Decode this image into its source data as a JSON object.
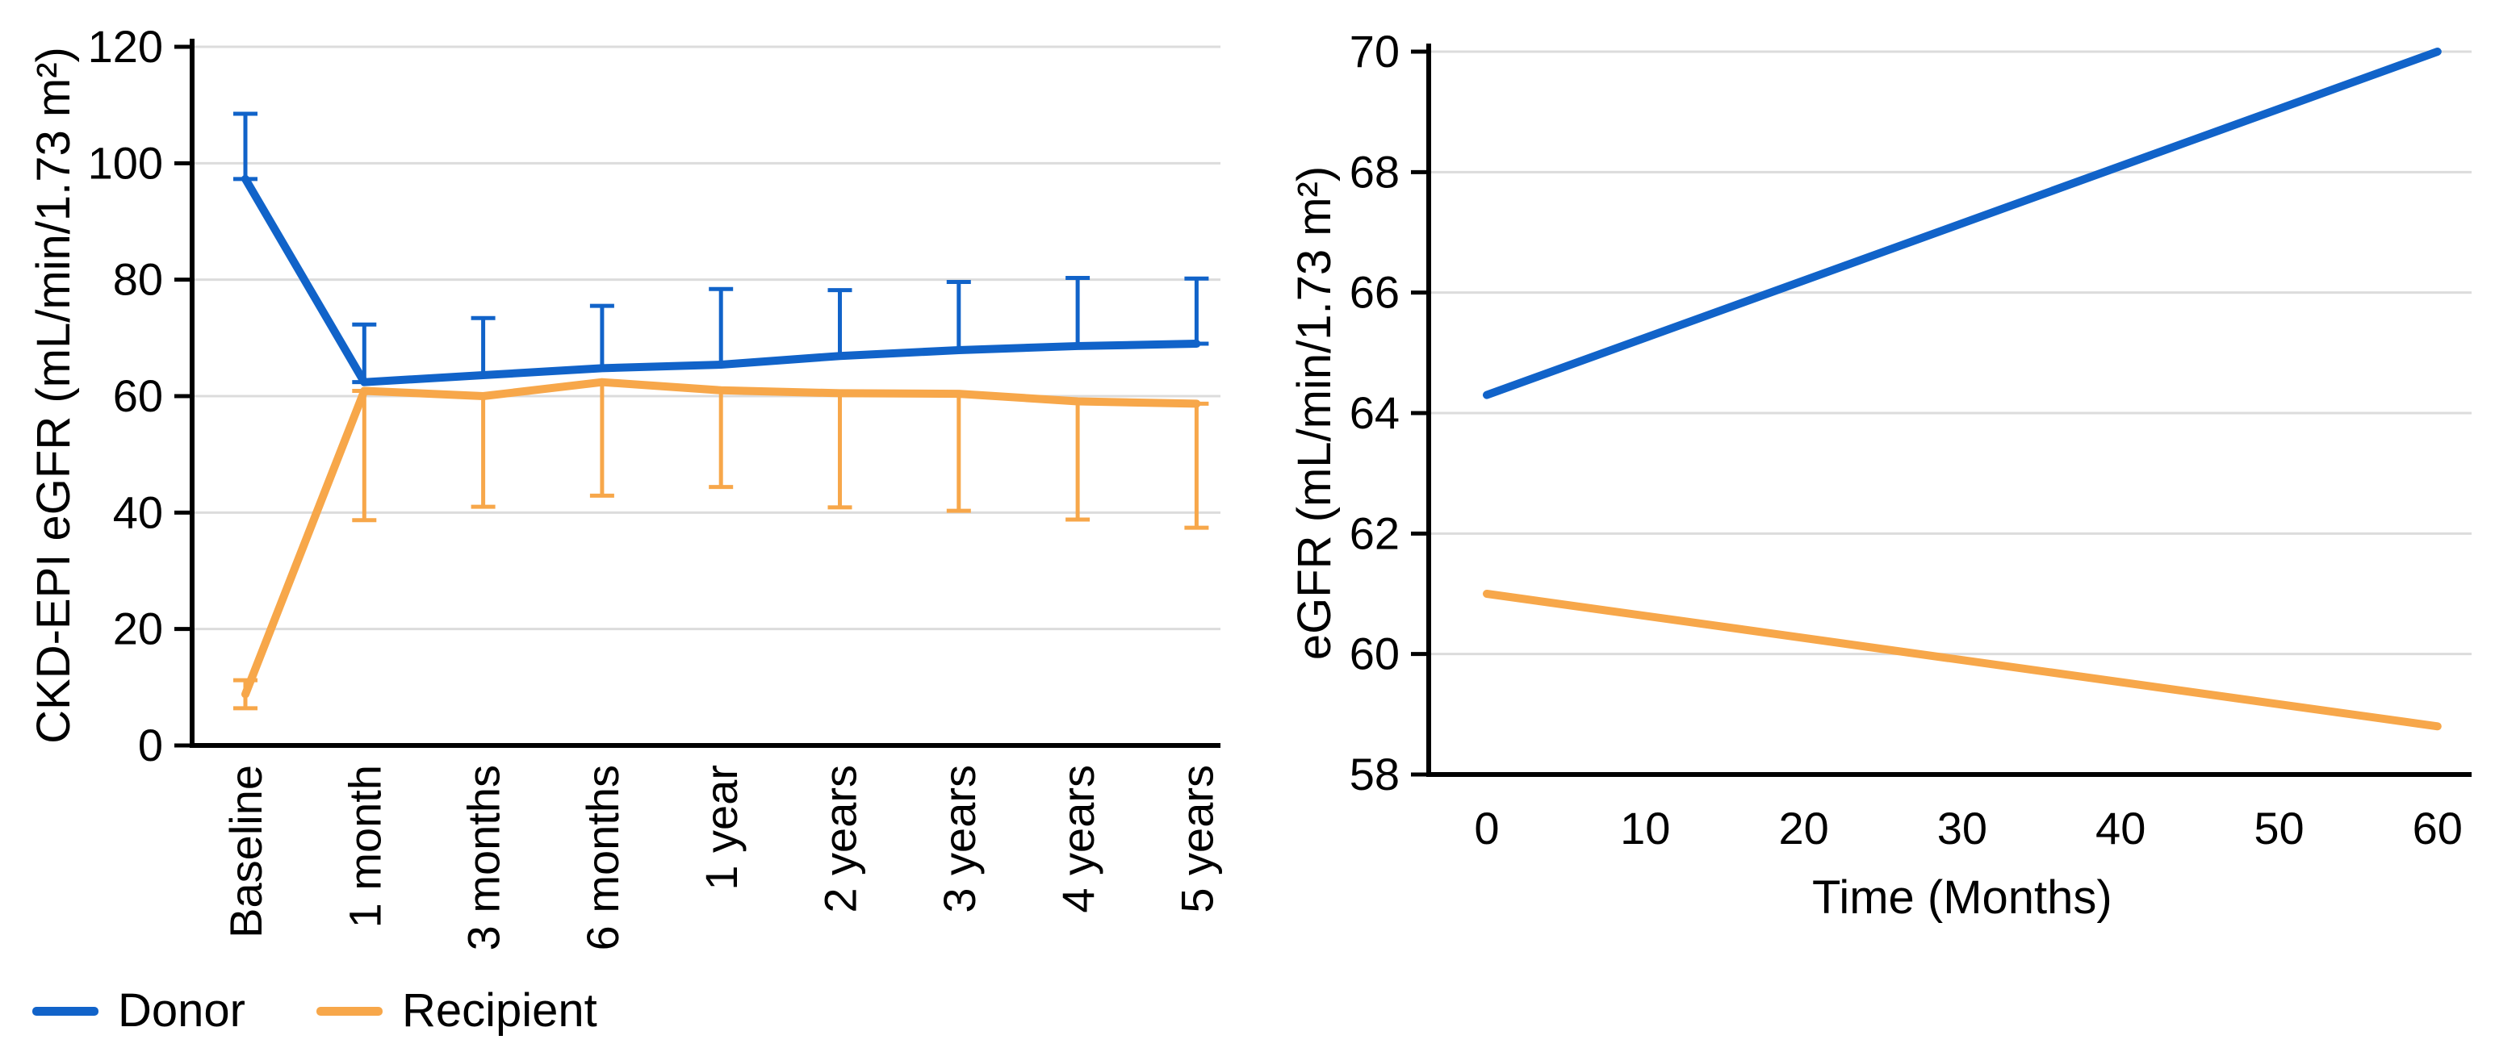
{
  "figure": {
    "background": "#ffffff",
    "colors": {
      "donor": "#1163C9",
      "recipient": "#F7A74A",
      "grid": "#DCDCDC",
      "axis": "#000000",
      "text": "#000000"
    },
    "legend": {
      "position": "bottom-left",
      "items": [
        {
          "label": "Donor",
          "series": "donor"
        },
        {
          "label": "Recipient",
          "series": "recipient"
        }
      ]
    }
  },
  "chart_data": [
    {
      "type": "line",
      "panel": "left",
      "title": "",
      "ylabel": "CKD-EPI eGFR (mL/min/1.73 m²)",
      "xlabel": "",
      "categories": [
        "Baseline",
        "1 month",
        "3 months",
        "6 months",
        "1 year",
        "2 years",
        "3 years",
        "4 years",
        "5 years"
      ],
      "yticks": [
        0,
        20,
        40,
        60,
        80,
        100,
        120
      ],
      "ylim": [
        0,
        120
      ],
      "grid": true,
      "x_tick_label_rotation": -90,
      "error_bars": true,
      "series": [
        {
          "name": "Donor",
          "color_key": "donor",
          "values": [
            97.3,
            62.4,
            63.6,
            64.8,
            65.4,
            66.9,
            67.9,
            68.6,
            69.0
          ],
          "err_high": [
            108.5,
            72.3,
            73.4,
            75.5,
            78.4,
            78.2,
            79.6,
            80.3,
            80.2
          ],
          "err_low": [
            97.3,
            62.4,
            63.6,
            64.8,
            65.4,
            66.9,
            67.9,
            68.6,
            69.0
          ]
        },
        {
          "name": "Recipient",
          "color_key": "recipient",
          "values": [
            8.8,
            60.9,
            60.0,
            62.4,
            61.0,
            60.5,
            60.4,
            59.1,
            58.7
          ],
          "err_high": [
            11.2,
            60.9,
            60.0,
            62.4,
            61.0,
            60.5,
            60.4,
            59.1,
            58.7
          ],
          "err_low": [
            6.4,
            38.7,
            41.0,
            42.9,
            44.4,
            40.9,
            40.3,
            38.8,
            37.4
          ]
        }
      ]
    },
    {
      "type": "line",
      "panel": "right",
      "title": "",
      "ylabel": "eGFR (mL/min/1.73 m²)",
      "xlabel": "Time (Months)",
      "xticks": [
        0,
        10,
        20,
        30,
        40,
        50,
        60
      ],
      "yticks": [
        58,
        60,
        62,
        64,
        66,
        68,
        70
      ],
      "xlim": [
        0,
        60
      ],
      "ylim": [
        58,
        70
      ],
      "grid": true,
      "legend": "none",
      "series": [
        {
          "name": "Donor",
          "color_key": "donor",
          "x": [
            0,
            60
          ],
          "y": [
            64.3,
            70.0
          ]
        },
        {
          "name": "Recipient",
          "color_key": "recipient",
          "x": [
            0,
            60
          ],
          "y": [
            61.0,
            58.8
          ]
        }
      ]
    }
  ]
}
